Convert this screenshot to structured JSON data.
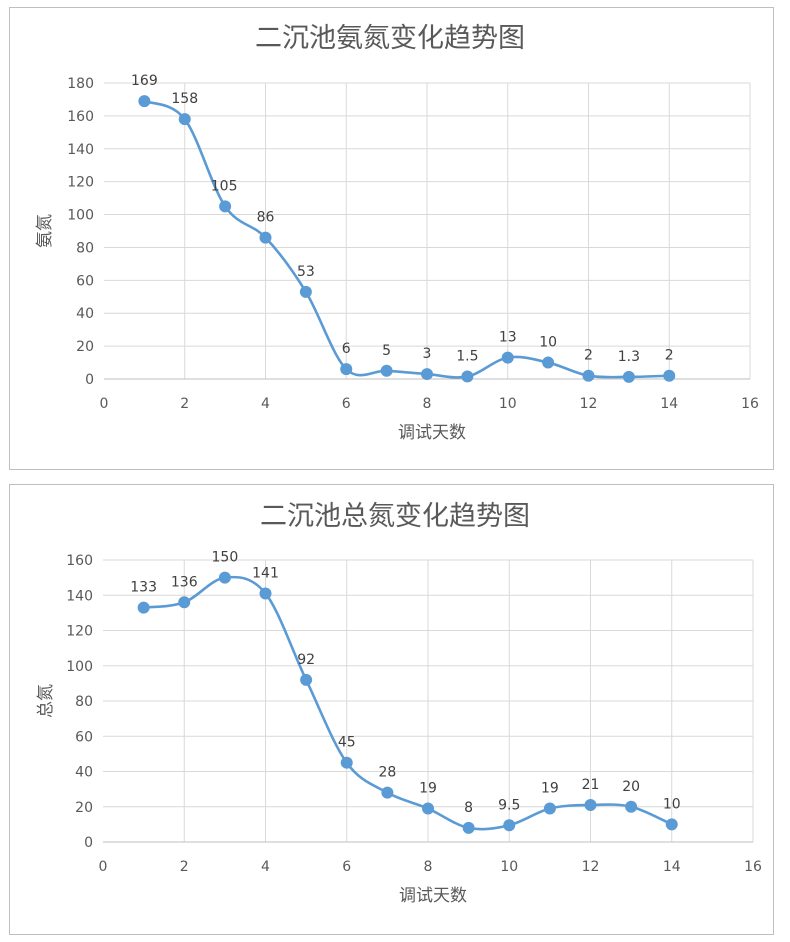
{
  "chart_data": [
    {
      "type": "line",
      "title": "二沉池氨氮变化趋势图",
      "xlabel": "调试天数",
      "ylabel": "氨氮",
      "xlim": [
        0,
        16
      ],
      "ylim": [
        0,
        180
      ],
      "xticks": [
        "0",
        "2",
        "4",
        "6",
        "8",
        "10",
        "12",
        "14",
        "16"
      ],
      "yticks": [
        "0",
        "20",
        "40",
        "60",
        "80",
        "100",
        "120",
        "140",
        "160",
        "180"
      ],
      "grid": true,
      "smooth": true,
      "series_color": "#5b9bd5",
      "x": [
        1,
        2,
        3,
        4,
        5,
        6,
        7,
        8,
        9,
        10,
        11,
        12,
        13,
        14
      ],
      "values": [
        169,
        158,
        105,
        86,
        53,
        6,
        5,
        3,
        1.5,
        13,
        10,
        2,
        1.3,
        2
      ],
      "labels": [
        "169",
        "158",
        "105",
        "86",
        "53",
        "6",
        "5",
        "3",
        "1.5",
        "13",
        "10",
        "2",
        "1.3",
        "2"
      ]
    },
    {
      "type": "line",
      "title": "二沉池总氮变化趋势图",
      "xlabel": "调试天数",
      "ylabel": "总氮",
      "xlim": [
        0,
        16
      ],
      "ylim": [
        0,
        160
      ],
      "xticks": [
        "0",
        "2",
        "4",
        "6",
        "8",
        "10",
        "12",
        "14",
        "16"
      ],
      "yticks": [
        "0",
        "20",
        "40",
        "60",
        "80",
        "100",
        "120",
        "140",
        "160"
      ],
      "grid": true,
      "smooth": true,
      "series_color": "#5b9bd5",
      "x": [
        1,
        2,
        3,
        4,
        5,
        6,
        7,
        8,
        9,
        10,
        11,
        12,
        13,
        14
      ],
      "values": [
        133,
        136,
        150,
        141,
        92,
        45,
        28,
        19,
        8,
        9.5,
        19,
        21,
        20,
        10
      ],
      "labels": [
        "133",
        "136",
        "150",
        "141",
        "92",
        "45",
        "28",
        "19",
        "8",
        "9.5",
        "19",
        "21",
        "20",
        "10"
      ]
    }
  ]
}
